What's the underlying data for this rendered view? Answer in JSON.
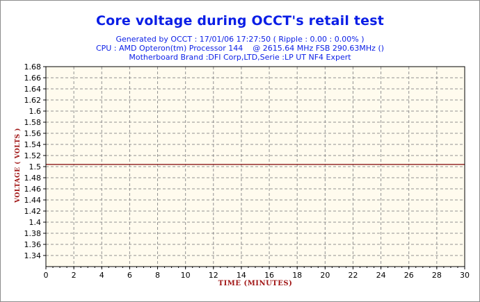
{
  "chart_data": {
    "type": "line",
    "title": "Core voltage during OCCT's retail test",
    "subtitle_lines": [
      "Generated by OCCT : 17/01/06 17:27:50 ( Ripple : 0.00 : 0.00% )",
      "CPU : AMD Opteron(tm) Processor 144    @ 2615.64 MHz FSB 290.63MHz ()",
      "Motherboard Brand :DFI Corp,LTD,Serie :LP UT NF4 Expert"
    ],
    "xlabel": "TIME (MINUTES)",
    "ylabel": "VOLTAGE ( VOLTS )",
    "xlim": [
      0,
      30
    ],
    "ylim": [
      1.32,
      1.68
    ],
    "x_ticks": [
      "0",
      "2",
      "4",
      "6",
      "8",
      "10",
      "12",
      "14",
      "16",
      "18",
      "20",
      "22",
      "24",
      "26",
      "28",
      "30"
    ],
    "y_ticks": [
      "1.34",
      "1.36",
      "1.38",
      "1.4",
      "1.42",
      "1.44",
      "1.46",
      "1.48",
      "1.5",
      "1.52",
      "1.54",
      "1.56",
      "1.58",
      "1.6",
      "1.62",
      "1.64",
      "1.66",
      "1.68"
    ],
    "grid": true,
    "series": [
      {
        "x": [
          0,
          30
        ],
        "y": [
          1.504,
          1.504
        ]
      }
    ],
    "colors": {
      "title": "#0a1ee6",
      "axis_label": "#a01414",
      "plot_bg": "#fffbee",
      "grid": "#909090",
      "line": "#8b1a1a"
    }
  }
}
